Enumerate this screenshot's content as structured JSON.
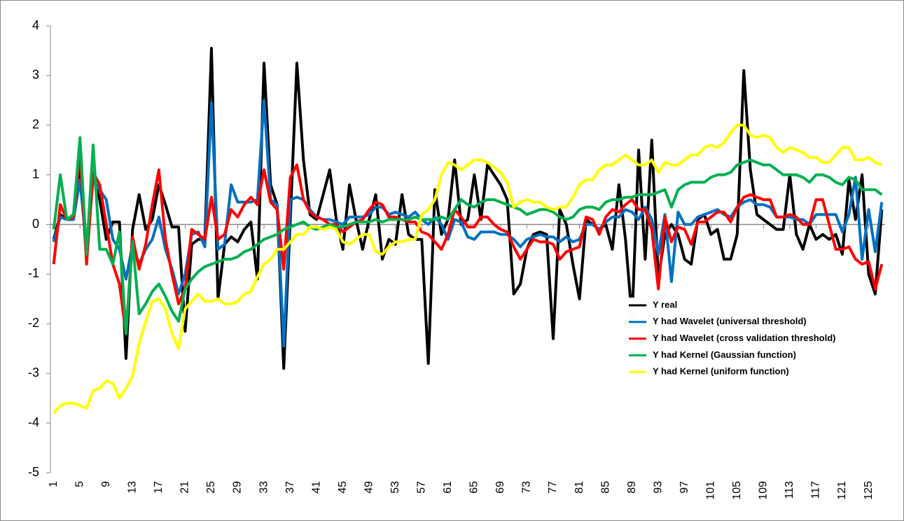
{
  "chart_data": {
    "type": "line",
    "x": [
      1,
      2,
      3,
      4,
      5,
      6,
      7,
      8,
      9,
      10,
      11,
      12,
      13,
      14,
      15,
      16,
      17,
      18,
      19,
      20,
      21,
      22,
      23,
      24,
      25,
      26,
      27,
      28,
      29,
      30,
      31,
      32,
      33,
      34,
      35,
      36,
      37,
      38,
      39,
      40,
      41,
      42,
      43,
      44,
      45,
      46,
      47,
      48,
      49,
      50,
      51,
      52,
      53,
      54,
      55,
      56,
      57,
      58,
      59,
      60,
      61,
      62,
      63,
      64,
      65,
      66,
      67,
      68,
      69,
      70,
      71,
      72,
      73,
      74,
      75,
      76,
      77,
      78,
      79,
      80,
      81,
      82,
      83,
      84,
      85,
      86,
      87,
      88,
      89,
      90,
      91,
      92,
      93,
      94,
      95,
      96,
      97,
      98,
      99,
      100,
      101,
      102,
      103,
      104,
      105,
      106,
      107,
      108,
      109,
      110,
      111,
      112,
      113,
      114,
      115,
      116,
      117,
      118,
      119,
      120,
      121,
      122,
      123,
      124,
      125,
      126,
      127
    ],
    "xlim": [
      0.5,
      127.5
    ],
    "xticks": [
      1,
      5,
      9,
      13,
      17,
      21,
      25,
      29,
      33,
      37,
      41,
      45,
      49,
      53,
      57,
      61,
      65,
      69,
      73,
      77,
      81,
      85,
      89,
      93,
      97,
      101,
      105,
      109,
      113,
      117,
      121,
      125
    ],
    "ylim": [
      -5,
      4
    ],
    "yticks": [
      -5,
      -4,
      -3,
      -2,
      -1,
      0,
      1,
      2,
      3,
      4
    ],
    "series": [
      {
        "name": "Y real",
        "color": "#000000",
        "values": [
          -0.3,
          0.2,
          0.1,
          0.1,
          1.2,
          -0.7,
          1.0,
          0.5,
          -0.3,
          0.05,
          0.05,
          -2.7,
          -0.1,
          0.6,
          -0.1,
          0.1,
          0.8,
          0.4,
          -0.05,
          -0.05,
          -2.15,
          -0.4,
          -0.3,
          -0.3,
          3.55,
          -1.5,
          -0.4,
          -0.25,
          -0.35,
          -0.1,
          0.05,
          -1.1,
          3.25,
          0.8,
          0.4,
          -2.9,
          0.1,
          3.25,
          1.3,
          0.2,
          0.1,
          0.6,
          1.1,
          0.1,
          -0.5,
          0.8,
          0.1,
          -0.5,
          0.1,
          0.6,
          -0.7,
          -0.3,
          -0.4,
          0.6,
          -0.2,
          -0.3,
          -0.3,
          -2.8,
          0.7,
          -0.2,
          0.1,
          1.3,
          0.0,
          0.1,
          1.0,
          0.1,
          1.2,
          1.0,
          0.8,
          0.5,
          -1.4,
          -1.2,
          -0.5,
          -0.2,
          -0.15,
          -0.2,
          -2.3,
          0.3,
          0.0,
          -0.8,
          -1.5,
          0.1,
          0.0,
          -0.1,
          0.0,
          -0.5,
          0.8,
          -0.3,
          -1.9,
          1.5,
          -0.7,
          1.7,
          -1.1,
          -0.2,
          0.0,
          -0.2,
          -0.7,
          -0.8,
          0.1,
          0.2,
          -0.2,
          -0.1,
          -0.7,
          -0.7,
          -0.2,
          3.1,
          1.1,
          0.2,
          0.1,
          0.0,
          -0.1,
          -0.1,
          1.0,
          -0.2,
          -0.5,
          0.0,
          -0.3,
          -0.2,
          -0.3,
          -0.2,
          -0.6,
          0.9,
          0.1,
          1.0,
          -1.0,
          -1.4,
          0.3
        ]
      },
      {
        "name": "Y had Wavelet (universal threshold)",
        "color": "#0070c0",
        "values": [
          -0.35,
          0.15,
          0.1,
          0.1,
          0.9,
          -0.5,
          0.9,
          0.7,
          0.5,
          -0.3,
          -0.5,
          -1.1,
          -0.4,
          -0.8,
          -0.5,
          -0.3,
          0.15,
          -0.5,
          -0.9,
          -1.4,
          -1.0,
          -0.2,
          -0.15,
          -0.45,
          2.45,
          -0.5,
          -0.4,
          0.8,
          0.45,
          0.45,
          0.45,
          0.5,
          2.5,
          0.5,
          0.4,
          -2.45,
          0.5,
          0.55,
          0.5,
          0.3,
          0.15,
          0.1,
          0.1,
          0.05,
          0.0,
          0.15,
          0.15,
          0.15,
          0.2,
          0.35,
          0.35,
          0.2,
          0.25,
          0.2,
          0.15,
          0.25,
          0.1,
          0.0,
          0.15,
          0.0,
          -0.3,
          0.1,
          0.05,
          -0.25,
          -0.3,
          -0.15,
          -0.15,
          -0.15,
          -0.2,
          -0.2,
          -0.3,
          -0.45,
          -0.3,
          -0.25,
          -0.2,
          -0.25,
          -0.25,
          -0.35,
          -0.25,
          -0.35,
          -0.3,
          0.0,
          0.0,
          -0.1,
          0.05,
          0.15,
          0.15,
          0.3,
          0.25,
          0.1,
          0.35,
          0.1,
          -0.6,
          0.2,
          -1.15,
          0.25,
          0.0,
          0.0,
          0.15,
          0.2,
          0.25,
          0.3,
          0.2,
          0.15,
          0.35,
          0.45,
          0.5,
          0.4,
          0.4,
          0.35,
          0.15,
          0.15,
          0.15,
          0.1,
          0.1,
          0.0,
          0.2,
          0.2,
          0.2,
          0.2,
          -0.15,
          0.2,
          0.95,
          -0.7,
          0.3,
          -0.55,
          0.45
        ]
      },
      {
        "name": "Y had Wavelet (cross validation threshold)",
        "color": "#ff0000",
        "values": [
          -0.8,
          0.4,
          0.1,
          0.15,
          1.5,
          -0.8,
          1.05,
          0.8,
          0.0,
          -0.8,
          -1.2,
          -2.2,
          -0.25,
          -0.9,
          -0.4,
          0.4,
          1.1,
          -0.3,
          -1.0,
          -1.6,
          -1.3,
          -0.1,
          -0.2,
          -0.3,
          0.55,
          -0.3,
          -0.2,
          0.3,
          0.15,
          0.4,
          0.55,
          0.4,
          1.1,
          0.45,
          0.3,
          -0.9,
          0.95,
          1.2,
          0.5,
          0.25,
          0.15,
          0.1,
          0.0,
          0.0,
          -0.15,
          -0.05,
          0.05,
          0.1,
          0.3,
          0.45,
          0.4,
          0.15,
          0.15,
          0.1,
          0.05,
          0.05,
          -0.15,
          -0.2,
          -0.35,
          -0.5,
          -0.2,
          0.3,
          0.15,
          -0.05,
          -0.05,
          0.15,
          0.15,
          0.0,
          -0.1,
          -0.15,
          -0.45,
          -0.7,
          -0.5,
          -0.3,
          -0.35,
          -0.35,
          -0.4,
          -0.7,
          -0.55,
          -0.5,
          -0.45,
          0.15,
          0.1,
          -0.2,
          0.15,
          0.3,
          0.25,
          0.4,
          0.5,
          0.3,
          0.3,
          -0.1,
          -1.3,
          0.15,
          -0.35,
          -0.05,
          -0.1,
          -0.4,
          0.05,
          0.05,
          0.15,
          0.25,
          0.25,
          0.05,
          0.35,
          0.55,
          0.6,
          0.55,
          0.5,
          0.5,
          0.15,
          0.15,
          0.2,
          0.15,
          0.0,
          0.0,
          0.5,
          0.5,
          0.0,
          -0.5,
          -0.5,
          -0.45,
          -0.7,
          -0.8,
          -0.75,
          -1.3,
          -0.8
        ]
      },
      {
        "name": "Y had Kernel (Gaussian function)",
        "color": "#00b050",
        "values": [
          -0.1,
          1.0,
          0.1,
          0.2,
          1.75,
          -0.6,
          1.6,
          -0.5,
          -0.5,
          -0.8,
          -0.15,
          -2.2,
          -0.35,
          -1.8,
          -1.6,
          -1.35,
          -1.2,
          -1.45,
          -1.75,
          -1.95,
          -1.3,
          -1.1,
          -0.95,
          -0.85,
          -0.8,
          -0.75,
          -0.7,
          -0.7,
          -0.65,
          -0.55,
          -0.5,
          -0.4,
          -0.3,
          -0.25,
          -0.2,
          -0.1,
          -0.05,
          0.0,
          0.05,
          -0.05,
          -0.1,
          -0.05,
          0.0,
          -0.05,
          -0.05,
          0.0,
          0.05,
          0.05,
          0.05,
          0.1,
          0.05,
          0.1,
          0.1,
          0.1,
          0.1,
          0.15,
          0.1,
          0.1,
          0.1,
          0.15,
          0.1,
          0.3,
          0.5,
          0.4,
          0.35,
          0.45,
          0.5,
          0.5,
          0.45,
          0.4,
          0.35,
          0.3,
          0.2,
          0.25,
          0.3,
          0.3,
          0.25,
          0.15,
          0.1,
          0.15,
          0.3,
          0.35,
          0.35,
          0.3,
          0.45,
          0.5,
          0.5,
          0.55,
          0.55,
          0.6,
          0.6,
          0.6,
          0.65,
          0.7,
          0.35,
          0.7,
          0.8,
          0.85,
          0.85,
          0.85,
          0.95,
          1.0,
          1.0,
          1.05,
          1.2,
          1.25,
          1.3,
          1.25,
          1.2,
          1.2,
          1.1,
          1.0,
          1.0,
          1.0,
          0.95,
          0.85,
          1.0,
          1.0,
          0.95,
          0.85,
          0.8,
          0.95,
          0.9,
          0.7,
          0.7,
          0.7,
          0.6
        ]
      },
      {
        "name": "Y had Kernel (uniform function)",
        "color": "#ffff00",
        "values": [
          -3.8,
          -3.65,
          -3.6,
          -3.6,
          -3.65,
          -3.7,
          -3.35,
          -3.3,
          -3.15,
          -3.2,
          -3.5,
          -3.3,
          -3.05,
          -2.4,
          -1.95,
          -1.55,
          -1.5,
          -1.7,
          -2.2,
          -2.5,
          -1.7,
          -1.55,
          -1.4,
          -1.55,
          -1.55,
          -1.5,
          -1.6,
          -1.6,
          -1.55,
          -1.4,
          -1.35,
          -1.05,
          -0.8,
          -0.7,
          -0.5,
          -0.5,
          -0.35,
          -0.2,
          -0.2,
          -0.05,
          -0.05,
          -0.1,
          -0.05,
          -0.1,
          -0.35,
          -0.4,
          -0.3,
          -0.2,
          -0.2,
          -0.55,
          -0.6,
          -0.45,
          -0.35,
          -0.35,
          -0.3,
          -0.3,
          0.2,
          0.3,
          0.5,
          1.0,
          1.25,
          1.2,
          1.1,
          1.2,
          1.3,
          1.3,
          1.25,
          1.15,
          1.05,
          0.85,
          0.35,
          0.45,
          0.5,
          0.45,
          0.45,
          0.35,
          0.3,
          0.35,
          0.35,
          0.55,
          0.8,
          0.9,
          0.9,
          1.1,
          1.2,
          1.2,
          1.3,
          1.4,
          1.3,
          1.2,
          1.2,
          1.3,
          1.05,
          1.25,
          1.2,
          1.2,
          1.3,
          1.4,
          1.4,
          1.55,
          1.6,
          1.55,
          1.65,
          1.85,
          2.0,
          2.0,
          1.8,
          1.75,
          1.8,
          1.75,
          1.55,
          1.45,
          1.55,
          1.5,
          1.45,
          1.35,
          1.35,
          1.25,
          1.25,
          1.4,
          1.55,
          1.55,
          1.3,
          1.3,
          1.35,
          1.25,
          1.2
        ]
      }
    ]
  }
}
